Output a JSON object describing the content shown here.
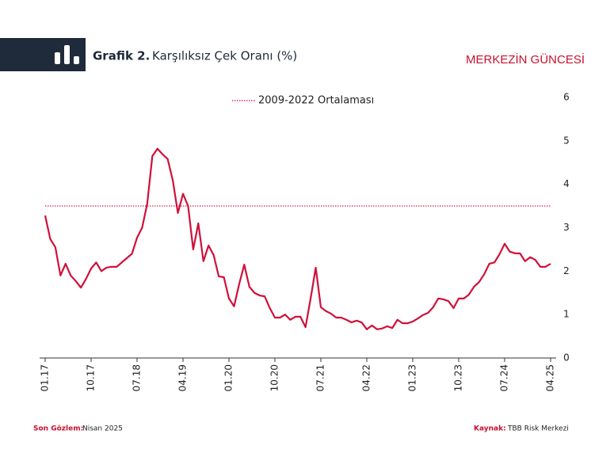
{
  "header": {
    "figure_label": "Grafik 2.",
    "title": "Karşılıksız Çek Oranı (%)",
    "brand": "MERKEZİN GÜNCESİ"
  },
  "footer": {
    "observation_label": "Son Gözlem:",
    "observation": "Nisan 2025",
    "source_label": "Kaynak:",
    "source": "TBB Risk Merkezi"
  },
  "chart_data": {
    "type": "line",
    "color": "#d0103a",
    "categories": [
      "01.17",
      null,
      null,
      null,
      null,
      null,
      null,
      null,
      null,
      "10.17",
      null,
      null,
      null,
      null,
      null,
      null,
      null,
      null,
      "07.18",
      null,
      null,
      null,
      null,
      null,
      null,
      null,
      null,
      "04.19",
      null,
      null,
      null,
      null,
      null,
      null,
      null,
      null,
      "01.20",
      null,
      null,
      null,
      null,
      null,
      null,
      null,
      null,
      "10.20",
      null,
      null,
      null,
      null,
      null,
      null,
      null,
      null,
      "07.21",
      null,
      null,
      null,
      null,
      null,
      null,
      null,
      null,
      "04.22",
      null,
      null,
      null,
      null,
      null,
      null,
      null,
      null,
      "01.23",
      null,
      null,
      null,
      null,
      null,
      null,
      null,
      null,
      "10.23",
      null,
      null,
      null,
      null,
      null,
      null,
      null,
      null,
      "07.24",
      null,
      null,
      null,
      null,
      null,
      null,
      null,
      null,
      "04.25"
    ],
    "values": [
      3.28,
      2.74,
      2.55,
      1.9,
      2.17,
      1.9,
      1.77,
      1.62,
      1.82,
      2.06,
      2.2,
      2.0,
      2.08,
      2.1,
      2.1,
      2.2,
      2.3,
      2.4,
      2.77,
      3.0,
      3.56,
      4.65,
      4.82,
      4.69,
      4.58,
      4.09,
      3.34,
      3.78,
      3.5,
      2.5,
      3.1,
      2.23,
      2.59,
      2.37,
      1.88,
      1.86,
      1.37,
      1.19,
      1.7,
      2.15,
      1.64,
      1.5,
      1.44,
      1.42,
      1.15,
      0.93,
      0.93,
      1.0,
      0.88,
      0.95,
      0.95,
      0.71,
      1.37,
      2.08,
      1.17,
      1.08,
      1.02,
      0.93,
      0.93,
      0.88,
      0.82,
      0.86,
      0.82,
      0.66,
      0.75,
      0.66,
      0.68,
      0.73,
      0.69,
      0.88,
      0.8,
      0.8,
      0.84,
      0.91,
      0.99,
      1.04,
      1.17,
      1.37,
      1.35,
      1.31,
      1.15,
      1.37,
      1.37,
      1.46,
      1.64,
      1.75,
      1.93,
      2.17,
      2.2,
      2.39,
      2.63,
      2.45,
      2.41,
      2.41,
      2.23,
      2.32,
      2.26,
      2.1,
      2.1,
      2.17
    ],
    "ylim": [
      0,
      6
    ],
    "yticks": [
      0,
      1,
      2,
      3,
      4,
      5,
      6
    ],
    "grid": false,
    "average_line": {
      "label": "2009-2022 Ortalaması",
      "value": 3.5,
      "color": "#d0103a"
    }
  }
}
